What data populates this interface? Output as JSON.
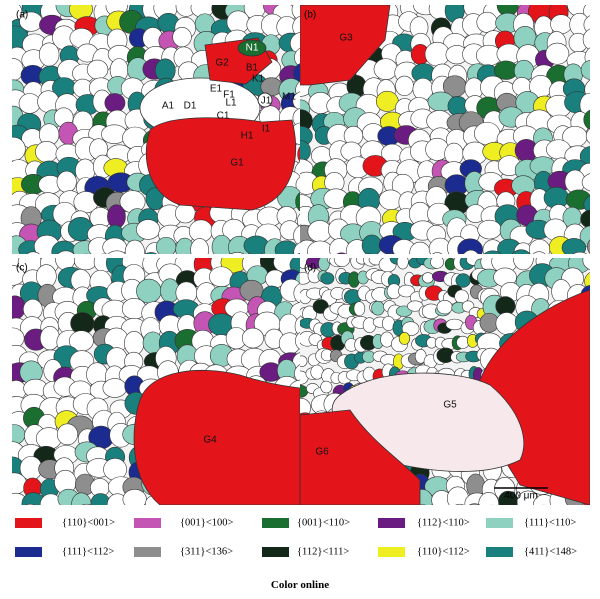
{
  "panels": [
    {
      "label": "(a)",
      "annotations": [
        "N1",
        "G2",
        "B1",
        "K1",
        "E1",
        "F1",
        "L1",
        "A1",
        "D1",
        "C1",
        "J1",
        "M1",
        "H1",
        "I1",
        "G1"
      ]
    },
    {
      "label": "(b)",
      "annotations": [
        "G3"
      ]
    },
    {
      "label": "(c)",
      "annotations": [
        "G4"
      ]
    },
    {
      "label": "(d)",
      "annotations": [
        "G5",
        "G6"
      ]
    }
  ],
  "scale_bar": "400 μm",
  "legend": [
    {
      "label": "{110}<001>",
      "color": "#e3151b"
    },
    {
      "label": "{001}<100>",
      "color": "#c455b4"
    },
    {
      "label": "{001}<110>",
      "color": "#1a6e30"
    },
    {
      "label": "{112}<110>",
      "color": "#6b1c80"
    },
    {
      "label": "{111}<110>",
      "color": "#8fd1c1"
    },
    {
      "label": "{111}<112>",
      "color": "#1c2b8f"
    },
    {
      "label": "{311}<136>",
      "color": "#8e8e8e"
    },
    {
      "label": "{112}<111>",
      "color": "#14281a"
    },
    {
      "label": "{110}<112>",
      "color": "#eeee22"
    },
    {
      "label": "{411}<148>",
      "color": "#19807e"
    }
  ],
  "caption": "Color online"
}
